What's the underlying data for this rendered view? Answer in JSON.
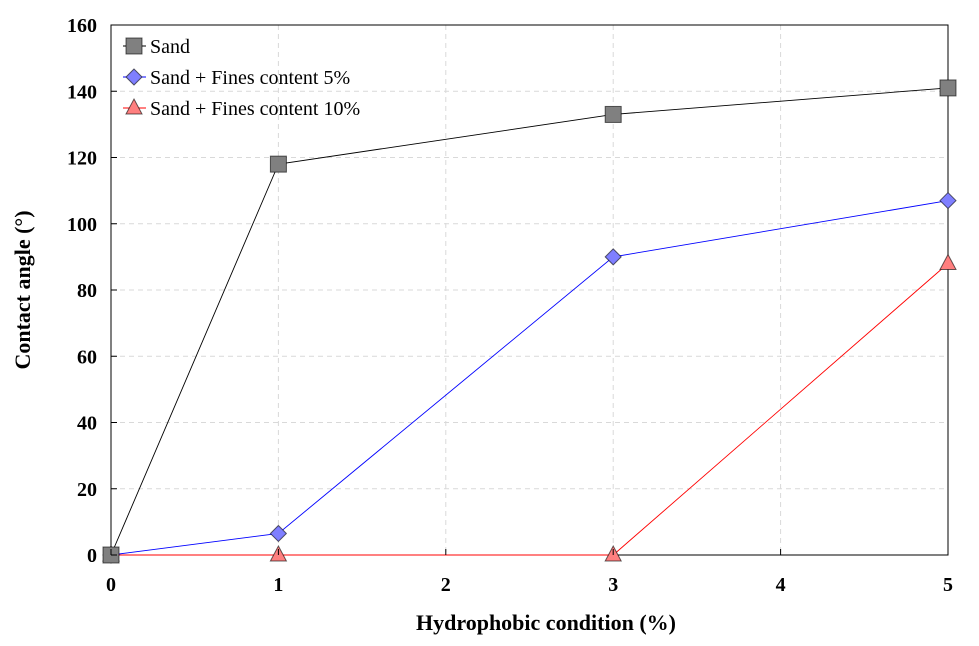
{
  "chart_data": {
    "type": "line",
    "title": "",
    "xlabel": "Hydrophobic condition (%)",
    "ylabel": "Contact angle (°)",
    "xlim": [
      0,
      5
    ],
    "ylim": [
      0,
      160
    ],
    "xticks": [
      0,
      1,
      2,
      3,
      4,
      5
    ],
    "yticks": [
      0,
      20,
      40,
      60,
      80,
      100,
      120,
      140,
      160
    ],
    "grid": true,
    "legend_position": "top-left",
    "series": [
      {
        "name": "Sand",
        "marker": "square",
        "line_color": "#000000",
        "marker_color": "#808080",
        "x": [
          0,
          1,
          3,
          5
        ],
        "y": [
          0,
          118,
          133,
          141
        ]
      },
      {
        "name": "Sand + Fines content 5%",
        "marker": "diamond",
        "line_color": "#0000ff",
        "marker_color": "#7f7fff",
        "x": [
          0,
          1,
          3,
          5
        ],
        "y": [
          0,
          6.5,
          90,
          107
        ]
      },
      {
        "name": "Sand + Fines content 10%",
        "marker": "triangle",
        "line_color": "#ff0000",
        "marker_color": "#ff7f7f",
        "x": [
          0,
          1,
          3,
          5
        ],
        "y": [
          0,
          0,
          0,
          88
        ]
      }
    ]
  }
}
